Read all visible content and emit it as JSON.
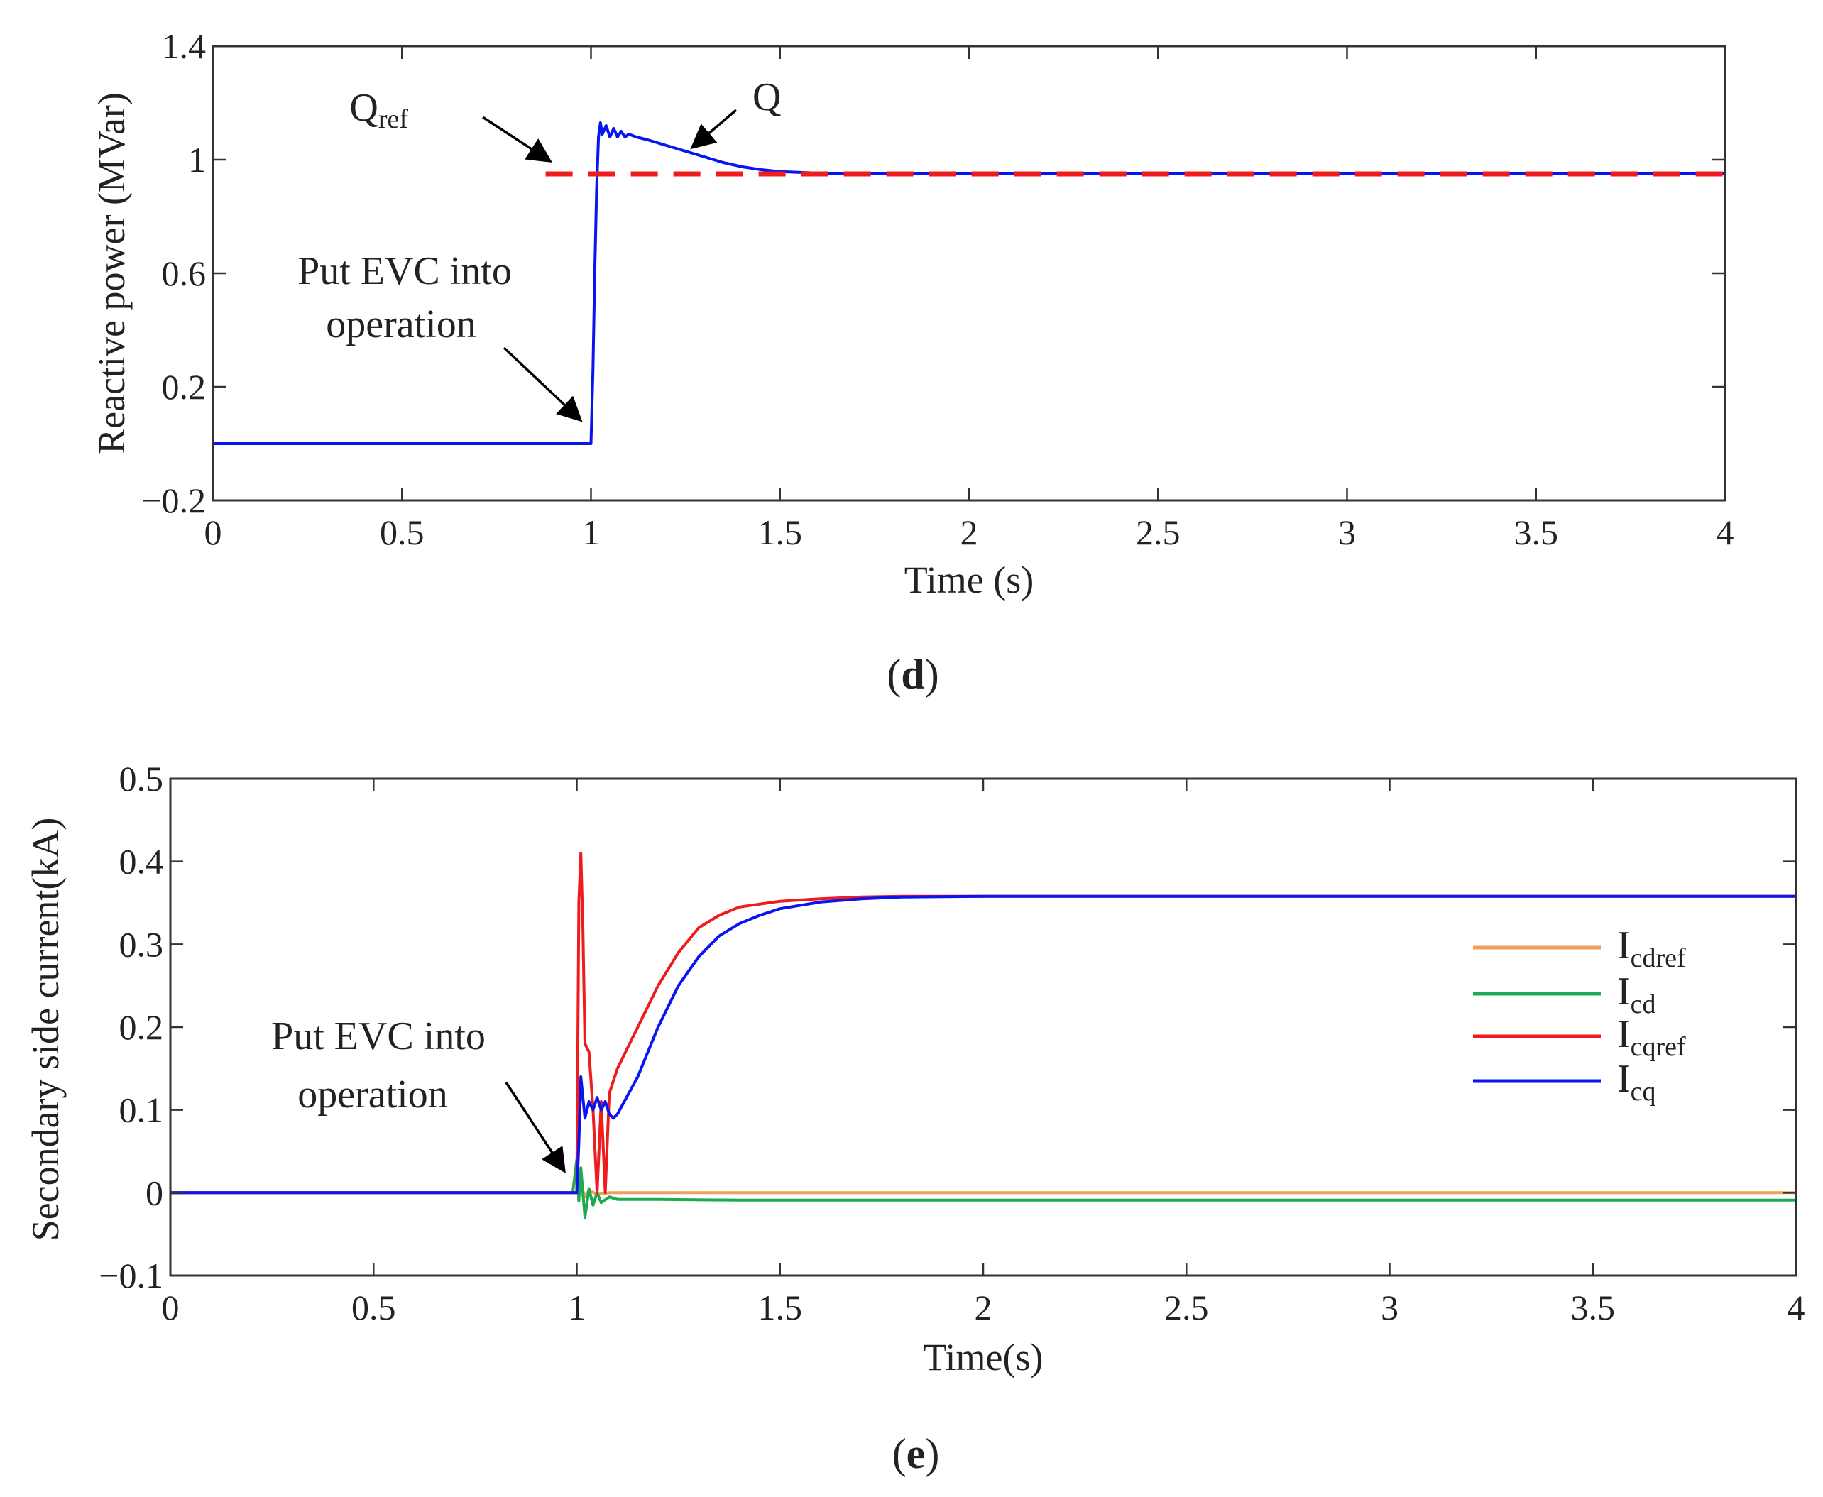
{
  "chart_data": [
    {
      "type": "line",
      "panel_label": "d",
      "xlabel": "Time (s)",
      "ylabel": "Reactive power (MVar)",
      "xlim": [
        0,
        4
      ],
      "ylim": [
        -0.2,
        1.4
      ],
      "xticks": [
        "0",
        "0.5",
        "1",
        "1.5",
        "2",
        "2.5",
        "3",
        "3.5",
        "4"
      ],
      "yticks": [
        "−0.2",
        "0.2",
        "0.6",
        "1",
        "1.4"
      ],
      "grid": false,
      "series": [
        {
          "name": "Q",
          "label_main": "Q",
          "label_sub": "",
          "color": "#0a14f0",
          "style": "solid",
          "x": [
            0,
            1.0,
            1.005,
            1.01,
            1.015,
            1.02,
            1.025,
            1.03,
            1.04,
            1.05,
            1.06,
            1.07,
            1.08,
            1.09,
            1.1,
            1.12,
            1.15,
            1.2,
            1.25,
            1.3,
            1.35,
            1.4,
            1.45,
            1.5,
            1.6,
            1.7,
            2.0,
            3.0,
            4.0
          ],
          "y": [
            0.0,
            0.0,
            0.25,
            0.6,
            0.9,
            1.08,
            1.13,
            1.09,
            1.12,
            1.08,
            1.11,
            1.08,
            1.1,
            1.08,
            1.09,
            1.08,
            1.07,
            1.05,
            1.03,
            1.01,
            0.99,
            0.975,
            0.965,
            0.958,
            0.953,
            0.951,
            0.95,
            0.95,
            0.95
          ]
        },
        {
          "name": "Qref",
          "label_main": "Q",
          "label_sub": "ref",
          "color": "#ee1c1c",
          "style": "dashed",
          "x": [
            0.88,
            4.0
          ],
          "y": [
            0.95,
            0.95
          ]
        }
      ],
      "annotations": {
        "evc_line1": "Put EVC into",
        "evc_line2": "operation"
      }
    },
    {
      "type": "line",
      "panel_label": "e",
      "xlabel": "Time(s)",
      "ylabel": "Secondary side current(kA)",
      "xlim": [
        0,
        4
      ],
      "ylim": [
        -0.1,
        0.5
      ],
      "xticks": [
        "0",
        "0.5",
        "1",
        "1.5",
        "2",
        "2.5",
        "3",
        "3.5",
        "4"
      ],
      "yticks": [
        "−0.1",
        "0",
        "0.1",
        "0.2",
        "0.3",
        "0.4",
        "0.5"
      ],
      "grid": false,
      "legend_position": "right",
      "series": [
        {
          "name": "Icdref",
          "label_main": "I",
          "label_sub": "cdref",
          "color": "#f0a058",
          "x": [
            0,
            1.0,
            1.01,
            1.02,
            1.03,
            1.05,
            1.08,
            1.1,
            1.2,
            4.0
          ],
          "y": [
            0.0,
            0.0,
            0.01,
            -0.005,
            0.003,
            -0.002,
            0.0,
            0.0,
            0.0,
            0.0
          ]
        },
        {
          "name": "Icd",
          "label_main": "I",
          "label_sub": "cd",
          "color": "#1eaa50",
          "x": [
            0,
            0.99,
            1.0,
            1.005,
            1.01,
            1.02,
            1.03,
            1.04,
            1.05,
            1.06,
            1.08,
            1.1,
            1.2,
            1.4,
            1.6,
            2.0,
            4.0
          ],
          "y": [
            0.0,
            0.0,
            0.04,
            -0.01,
            0.03,
            -0.03,
            0.005,
            -0.015,
            0.0,
            -0.012,
            -0.005,
            -0.008,
            -0.008,
            -0.009,
            -0.009,
            -0.009,
            -0.009
          ]
        },
        {
          "name": "Icqref",
          "label_main": "I",
          "label_sub": "cqref",
          "color": "#ee1c1c",
          "x": [
            0,
            1.0,
            1.005,
            1.01,
            1.015,
            1.02,
            1.03,
            1.04,
            1.05,
            1.06,
            1.07,
            1.08,
            1.1,
            1.15,
            1.2,
            1.25,
            1.3,
            1.35,
            1.4,
            1.5,
            1.6,
            1.7,
            1.8,
            2.0,
            3.0,
            4.0
          ],
          "y": [
            0.0,
            0.0,
            0.35,
            0.41,
            0.32,
            0.18,
            0.17,
            0.1,
            0.0,
            0.11,
            0.0,
            0.12,
            0.15,
            0.2,
            0.25,
            0.29,
            0.32,
            0.335,
            0.345,
            0.352,
            0.355,
            0.357,
            0.358,
            0.358,
            0.358,
            0.358
          ]
        },
        {
          "name": "Icq",
          "label_main": "I",
          "label_sub": "cq",
          "color": "#0a14f0",
          "x": [
            0,
            1.0,
            1.005,
            1.01,
            1.02,
            1.03,
            1.04,
            1.05,
            1.06,
            1.07,
            1.08,
            1.09,
            1.1,
            1.15,
            1.2,
            1.25,
            1.3,
            1.35,
            1.4,
            1.45,
            1.5,
            1.6,
            1.7,
            1.8,
            2.0,
            3.0,
            4.0
          ],
          "y": [
            0.0,
            0.0,
            0.06,
            0.14,
            0.09,
            0.11,
            0.1,
            0.115,
            0.1,
            0.11,
            0.095,
            0.09,
            0.095,
            0.14,
            0.2,
            0.25,
            0.285,
            0.31,
            0.325,
            0.335,
            0.343,
            0.351,
            0.355,
            0.357,
            0.358,
            0.358,
            0.358
          ]
        }
      ],
      "annotations": {
        "evc_line1": "Put EVC into",
        "evc_line2": "operation"
      }
    }
  ]
}
